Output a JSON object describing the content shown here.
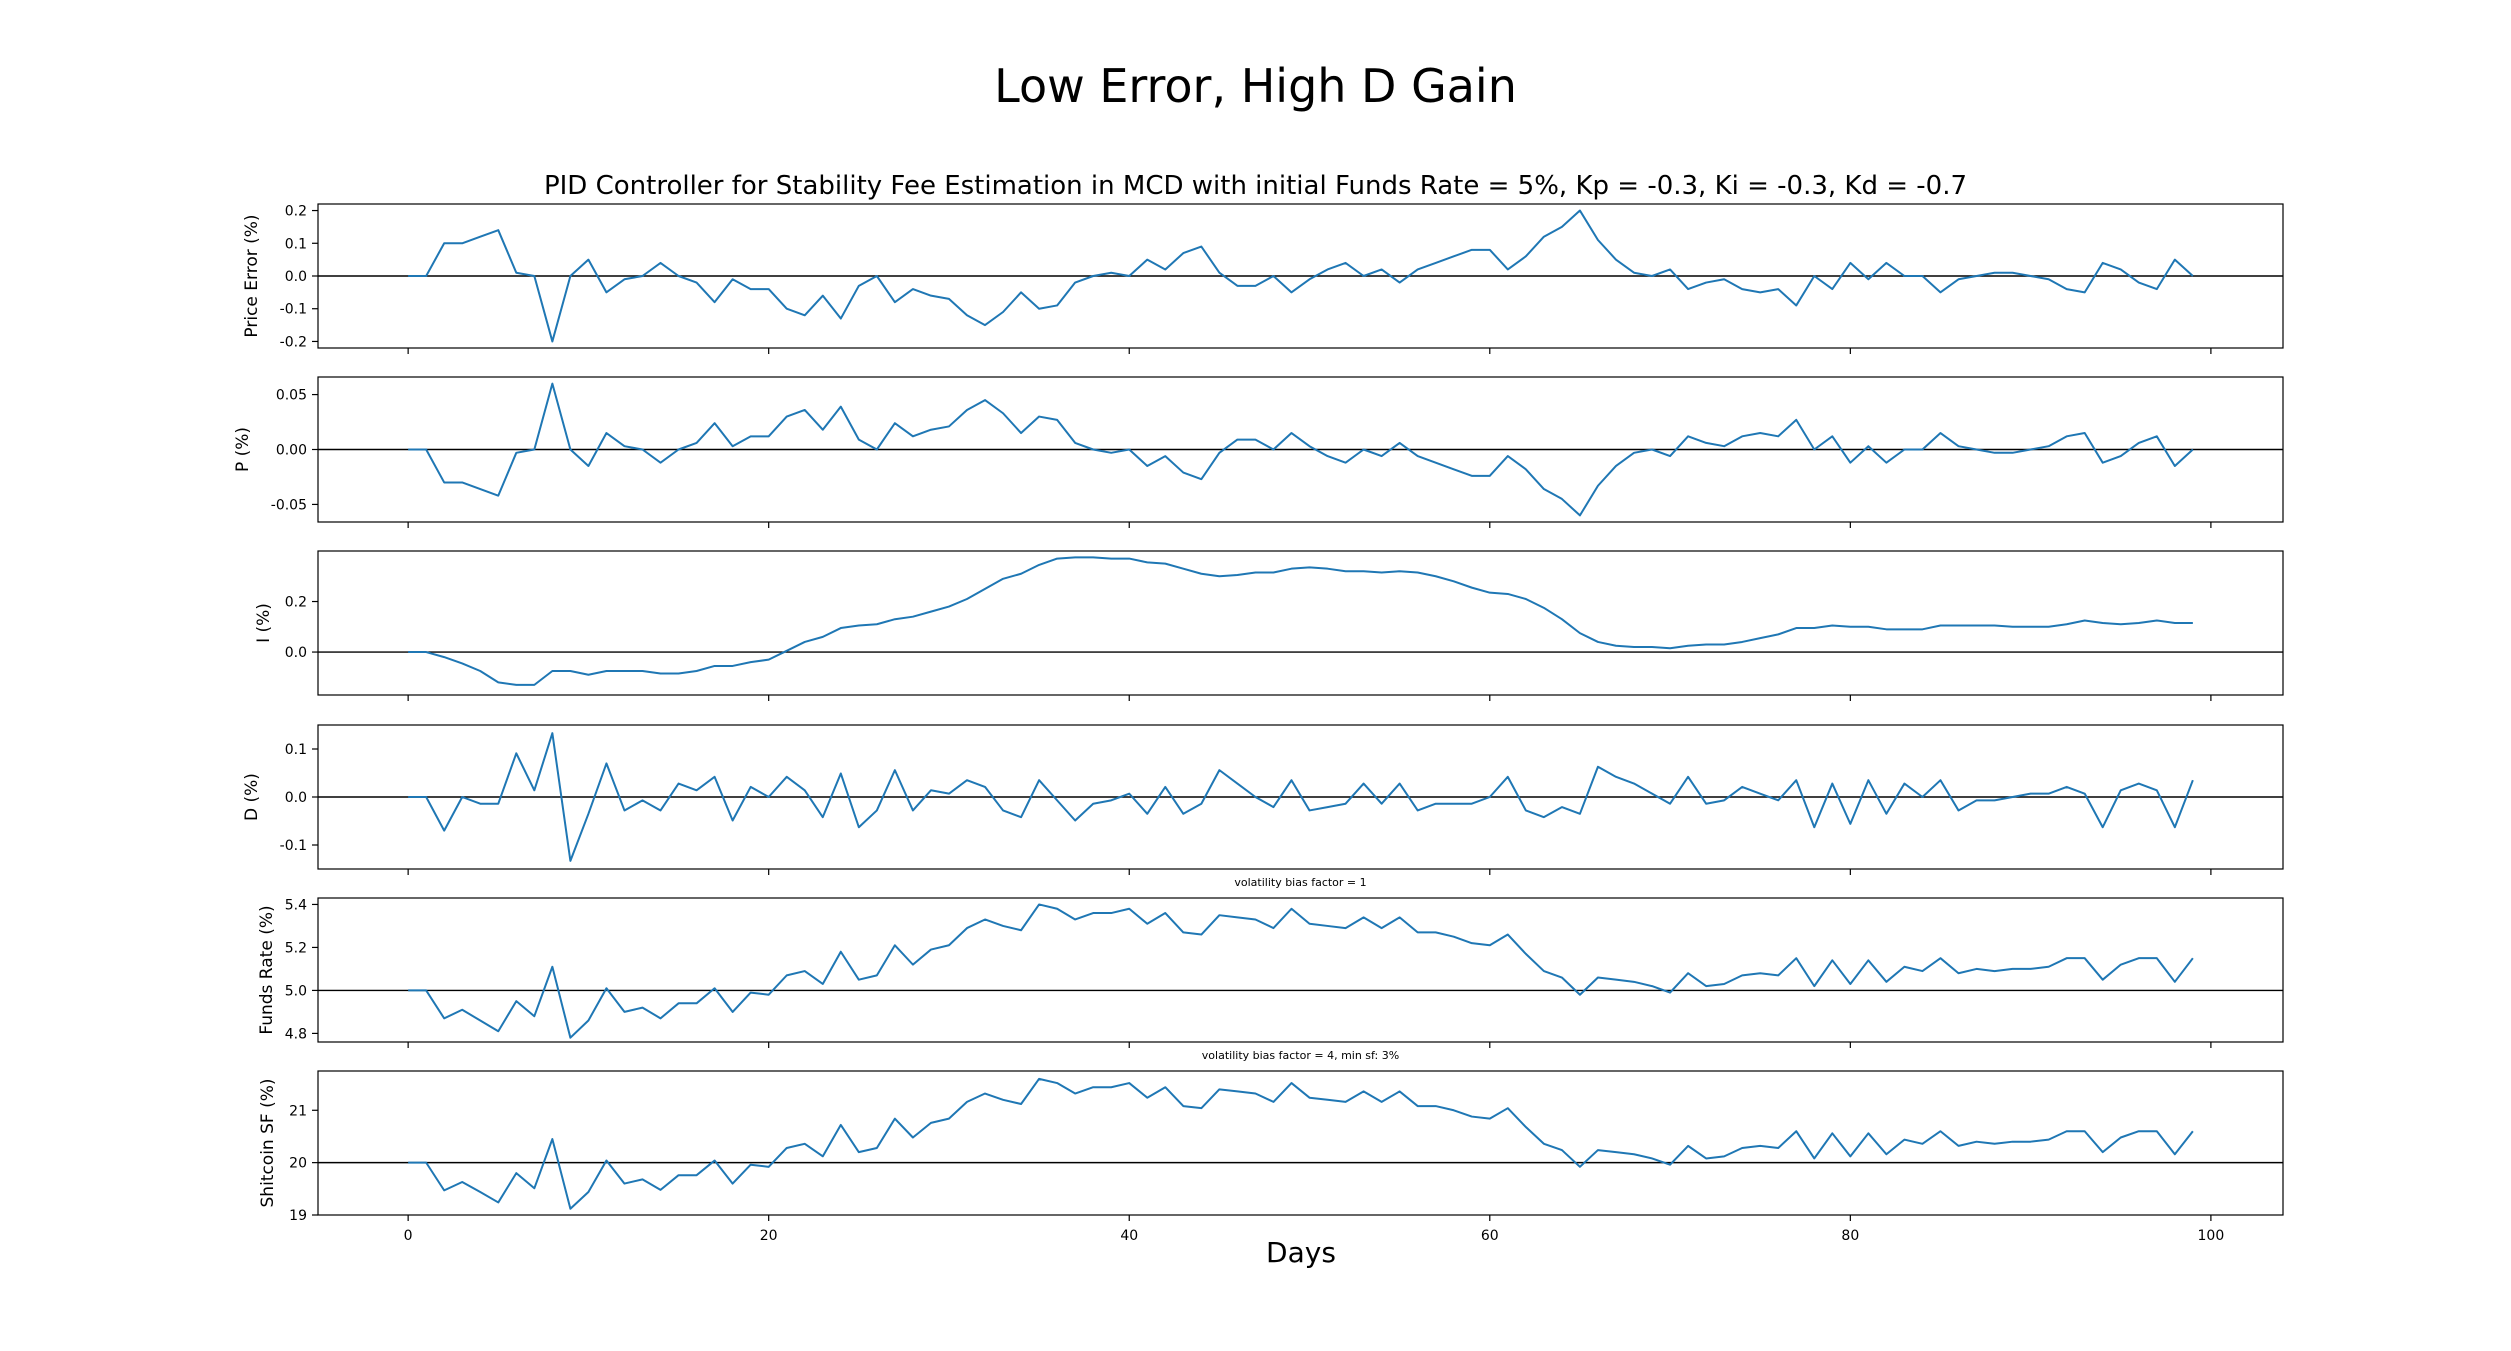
{
  "figure": {
    "suptitle": "Low Error, High D Gain",
    "subtitle": "PID Controller for Stability Fee Estimation in MCD with initial Funds Rate = 5%, Kp = -0.3, Ki = -0.3, Kd = -0.7",
    "xlabel": "Days"
  },
  "colors": {
    "series": "#1f77b4",
    "axis": "#000000"
  },
  "chart_data": [
    {
      "type": "line",
      "ylabel": "Price Error (%)",
      "ylim": [
        -0.22,
        0.22
      ],
      "yticks": [
        "0.2",
        "0.1",
        "0.0",
        "-0.1",
        "-0.2"
      ],
      "ytick_values": [
        0.2,
        0.1,
        0.0,
        -0.1,
        -0.2
      ],
      "baseline": 0,
      "annotation": "",
      "xlim": [
        -5,
        104
      ],
      "xticks": [
        "0",
        "20",
        "40",
        "60",
        "80",
        "100"
      ],
      "xtick_values": [
        0,
        20,
        40,
        60,
        80,
        100
      ],
      "x_start": 0,
      "x_step": 1,
      "values": [
        0,
        0,
        0.1,
        0.1,
        0.12,
        0.14,
        0.01,
        0,
        -0.2,
        0,
        0.05,
        -0.05,
        -0.01,
        0,
        0.04,
        0,
        -0.02,
        -0.08,
        -0.01,
        -0.04,
        -0.04,
        -0.1,
        -0.12,
        -0.06,
        -0.13,
        -0.03,
        0,
        -0.08,
        -0.04,
        -0.06,
        -0.07,
        -0.12,
        -0.15,
        -0.11,
        -0.05,
        -0.1,
        -0.09,
        -0.02,
        0,
        0.01,
        0,
        0.05,
        0.02,
        0.07,
        0.09,
        0.01,
        -0.03,
        -0.03,
        0,
        -0.05,
        -0.01,
        0.02,
        0.04,
        0,
        0.02,
        -0.02,
        0.02,
        0.04,
        0.06,
        0.08,
        0.08,
        0.02,
        0.06,
        0.12,
        0.15,
        0.2,
        0.11,
        0.05,
        0.01,
        0,
        0.02,
        -0.04,
        -0.02,
        -0.01,
        -0.04,
        -0.05,
        -0.04,
        -0.09,
        0,
        -0.04,
        0.04,
        -0.01,
        0.04,
        0,
        0,
        -0.05,
        -0.01,
        0,
        0.01,
        0.01,
        0,
        -0.01,
        -0.04,
        -0.05,
        0.04,
        0.02,
        -0.02,
        -0.04,
        0.05,
        0
      ]
    },
    {
      "type": "line",
      "ylabel": "P (%)",
      "ylim": [
        -0.066,
        0.066
      ],
      "yticks": [
        "0.05",
        "0.00",
        "-0.05"
      ],
      "ytick_values": [
        0.05,
        0.0,
        -0.05
      ],
      "baseline": 0,
      "annotation": "",
      "xlim": [
        -5,
        104
      ],
      "xticks": [
        "0",
        "20",
        "40",
        "60",
        "80",
        "100"
      ],
      "xtick_values": [
        0,
        20,
        40,
        60,
        80,
        100
      ],
      "x_start": 0,
      "x_step": 1,
      "values": [
        0,
        0,
        -0.03,
        -0.03,
        -0.036,
        -0.042,
        -0.003,
        0,
        0.06,
        0,
        -0.015,
        0.015,
        0.003,
        0,
        -0.012,
        0,
        0.006,
        0.024,
        0.003,
        0.012,
        0.012,
        0.03,
        0.036,
        0.018,
        0.039,
        0.009,
        0,
        0.024,
        0.012,
        0.018,
        0.021,
        0.036,
        0.045,
        0.033,
        0.015,
        0.03,
        0.027,
        0.006,
        0,
        -0.003,
        0,
        -0.015,
        -0.006,
        -0.021,
        -0.027,
        -0.003,
        0.009,
        0.009,
        0,
        0.015,
        0.003,
        -0.006,
        -0.012,
        0,
        -0.006,
        0.006,
        -0.006,
        -0.012,
        -0.018,
        -0.024,
        -0.024,
        -0.006,
        -0.018,
        -0.036,
        -0.045,
        -0.06,
        -0.033,
        -0.015,
        -0.003,
        0,
        -0.006,
        0.012,
        0.006,
        0.003,
        0.012,
        0.015,
        0.012,
        0.027,
        0,
        0.012,
        -0.012,
        0.003,
        -0.012,
        0,
        0,
        0.015,
        0.003,
        0,
        -0.003,
        -0.003,
        0,
        0.003,
        0.012,
        0.015,
        -0.012,
        -0.006,
        0.006,
        0.012,
        -0.015,
        0
      ]
    },
    {
      "type": "line",
      "ylabel": "I (%)",
      "ylim": [
        -0.17,
        0.4
      ],
      "yticks": [
        "0.2",
        "0.0"
      ],
      "ytick_values": [
        0.2,
        0.0
      ],
      "baseline": 0,
      "annotation": "",
      "xlim": [
        -5,
        104
      ],
      "xticks": [
        "0",
        "20",
        "40",
        "60",
        "80",
        "100"
      ],
      "xtick_values": [
        0,
        20,
        40,
        60,
        80,
        100
      ],
      "x_start": 0,
      "x_step": 1,
      "values": [
        0,
        0,
        -0.02,
        -0.045,
        -0.075,
        -0.12,
        -0.13,
        -0.13,
        -0.075,
        -0.075,
        -0.09,
        -0.075,
        -0.075,
        -0.075,
        -0.085,
        -0.085,
        -0.075,
        -0.055,
        -0.055,
        -0.04,
        -0.03,
        0.005,
        0.04,
        0.06,
        0.095,
        0.105,
        0.11,
        0.13,
        0.14,
        0.16,
        0.18,
        0.21,
        0.25,
        0.29,
        0.31,
        0.345,
        0.37,
        0.375,
        0.375,
        0.37,
        0.37,
        0.355,
        0.35,
        0.33,
        0.31,
        0.3,
        0.305,
        0.315,
        0.315,
        0.33,
        0.335,
        0.33,
        0.32,
        0.32,
        0.315,
        0.32,
        0.315,
        0.3,
        0.28,
        0.255,
        0.235,
        0.23,
        0.21,
        0.175,
        0.13,
        0.075,
        0.04,
        0.025,
        0.02,
        0.02,
        0.015,
        0.025,
        0.03,
        0.03,
        0.04,
        0.055,
        0.07,
        0.095,
        0.095,
        0.105,
        0.1,
        0.1,
        0.09,
        0.09,
        0.09,
        0.105,
        0.105,
        0.105,
        0.105,
        0.1,
        0.1,
        0.1,
        0.11,
        0.125,
        0.115,
        0.11,
        0.115,
        0.125,
        0.115,
        0.115
      ]
    },
    {
      "type": "line",
      "ylabel": "D (%)",
      "ylim": [
        -0.15,
        0.15
      ],
      "yticks": [
        "0.1",
        "0.0",
        "-0.1"
      ],
      "ytick_values": [
        0.1,
        0.0,
        -0.1
      ],
      "baseline": 0,
      "annotation": "",
      "xlim": [
        -5,
        104
      ],
      "xticks": [
        "0",
        "20",
        "40",
        "60",
        "80",
        "100"
      ],
      "xtick_values": [
        0,
        20,
        40,
        60,
        80,
        100
      ],
      "x_start": 0,
      "x_step": 1,
      "values": [
        0,
        0,
        -0.07,
        0,
        -0.014,
        -0.014,
        0.091,
        0.014,
        0.133,
        -0.133,
        -0.035,
        0.07,
        -0.028,
        -0.007,
        -0.028,
        0.028,
        0.014,
        0.042,
        -0.049,
        0.021,
        0,
        0.042,
        0.014,
        -0.042,
        0.049,
        -0.063,
        -0.028,
        0.056,
        -0.028,
        0.014,
        0.007,
        0.035,
        0.021,
        -0.028,
        -0.042,
        0.035,
        -0.007,
        -0.049,
        -0.014,
        -0.007,
        0.007,
        -0.035,
        0.021,
        -0.035,
        -0.014,
        0.056,
        0.028,
        0,
        -0.021,
        0.035,
        -0.028,
        -0.021,
        -0.014,
        0.028,
        -0.014,
        0.028,
        -0.028,
        -0.014,
        -0.014,
        -0.014,
        0,
        0.042,
        -0.028,
        -0.042,
        -0.021,
        -0.035,
        0.063,
        0.042,
        0.028,
        0.007,
        -0.014,
        0.042,
        -0.014,
        -0.007,
        0.021,
        0.007,
        -0.007,
        0.035,
        -0.063,
        0.028,
        -0.056,
        0.035,
        -0.035,
        0.028,
        0,
        0.035,
        -0.028,
        -0.007,
        -0.007,
        0,
        0.007,
        0.007,
        0.021,
        0.007,
        -0.063,
        0.014,
        0.028,
        0.014,
        -0.063,
        0.035
      ]
    },
    {
      "type": "line",
      "ylabel": "Funds Rate (%)",
      "ylim": [
        4.76,
        5.43
      ],
      "yticks": [
        "5.4",
        "5.2",
        "5.0",
        "4.8"
      ],
      "ytick_values": [
        5.4,
        5.2,
        5.0,
        4.8
      ],
      "baseline": 5.0,
      "annotation": "volatility bias factor = 1",
      "xlim": [
        -5,
        104
      ],
      "xticks": [
        "0",
        "20",
        "40",
        "60",
        "80",
        "100"
      ],
      "xtick_values": [
        0,
        20,
        40,
        60,
        80,
        100
      ],
      "x_start": 0,
      "x_step": 1,
      "values": [
        5,
        5,
        4.87,
        4.91,
        4.86,
        4.81,
        4.95,
        4.88,
        5.11,
        4.78,
        4.86,
        5.01,
        4.9,
        4.92,
        4.87,
        4.94,
        4.94,
        5.01,
        4.9,
        4.99,
        4.98,
        5.07,
        5.09,
        5.03,
        5.18,
        5.05,
        5.07,
        5.21,
        5.12,
        5.19,
        5.21,
        5.29,
        5.33,
        5.3,
        5.28,
        5.4,
        5.38,
        5.33,
        5.36,
        5.36,
        5.38,
        5.31,
        5.36,
        5.27,
        5.26,
        5.35,
        5.34,
        5.33,
        5.29,
        5.38,
        5.31,
        5.3,
        5.29,
        5.34,
        5.29,
        5.34,
        5.27,
        5.27,
        5.25,
        5.22,
        5.21,
        5.26,
        5.17,
        5.09,
        5.06,
        4.98,
        5.06,
        5.05,
        5.04,
        5.02,
        4.99,
        5.08,
        5.02,
        5.03,
        5.07,
        5.08,
        5.07,
        5.15,
        5.02,
        5.14,
        5.03,
        5.14,
        5.04,
        5.11,
        5.09,
        5.15,
        5.08,
        5.1,
        5.09,
        5.1,
        5.1,
        5.11,
        5.15,
        5.15,
        5.05,
        5.12,
        5.15,
        5.15,
        5.04,
        5.15
      ]
    },
    {
      "type": "line",
      "ylabel": "Shitcoin SF (%)",
      "ylim": [
        19,
        21.75
      ],
      "yticks": [
        "21",
        "20",
        "19"
      ],
      "ytick_values": [
        21,
        20,
        19
      ],
      "baseline": 20,
      "annotation": "volatility bias factor = 4, min sf: 3%",
      "xlim": [
        -5,
        104
      ],
      "xticks": [
        "0",
        "20",
        "40",
        "60",
        "80",
        "100"
      ],
      "xtick_values": [
        0,
        20,
        40,
        60,
        80,
        100
      ],
      "x_start": 0,
      "x_step": 1,
      "values": [
        20,
        20,
        19.47,
        19.63,
        19.44,
        19.24,
        19.8,
        19.51,
        20.45,
        19.12,
        19.44,
        20.04,
        19.6,
        19.68,
        19.48,
        19.76,
        19.76,
        20.04,
        19.6,
        19.96,
        19.92,
        20.28,
        20.36,
        20.12,
        20.72,
        20.2,
        20.28,
        20.84,
        20.48,
        20.76,
        20.84,
        21.16,
        21.32,
        21.2,
        21.12,
        21.6,
        21.52,
        21.32,
        21.44,
        21.44,
        21.52,
        21.24,
        21.44,
        21.08,
        21.04,
        21.4,
        21.36,
        21.32,
        21.16,
        21.52,
        21.24,
        21.2,
        21.16,
        21.36,
        21.16,
        21.36,
        21.08,
        21.08,
        21,
        20.88,
        20.84,
        21.04,
        20.68,
        20.36,
        20.24,
        19.92,
        20.24,
        20.2,
        20.16,
        20.08,
        19.96,
        20.32,
        20.08,
        20.12,
        20.28,
        20.32,
        20.28,
        20.6,
        20.08,
        20.56,
        20.12,
        20.56,
        20.16,
        20.44,
        20.36,
        20.6,
        20.32,
        20.4,
        20.36,
        20.4,
        20.4,
        20.44,
        20.6,
        20.6,
        20.2,
        20.48,
        20.6,
        20.6,
        20.16,
        20.6
      ]
    }
  ]
}
